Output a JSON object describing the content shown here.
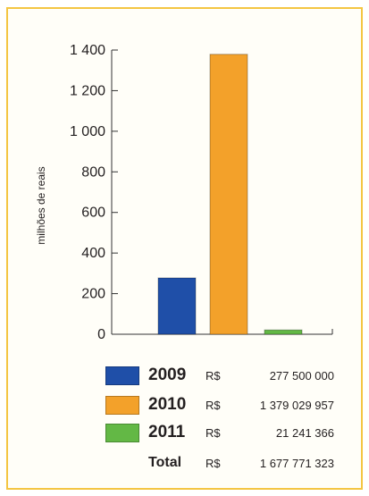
{
  "chart_data": {
    "type": "bar",
    "ylabel": "milhões de reais",
    "ylim": [
      0,
      1400
    ],
    "yticks": [
      0,
      200,
      400,
      600,
      800,
      1000,
      1200,
      1400
    ],
    "ytick_labels": [
      "0",
      "200",
      "400",
      "600",
      "800",
      "1 000",
      "1 200",
      "1 400"
    ],
    "categories": [
      "2009",
      "2010",
      "2011"
    ],
    "values": [
      277.5,
      1379.029957,
      21.241366
    ],
    "colors": [
      "#1f4fa8",
      "#f3a12a",
      "#63b845"
    ],
    "grid": false
  },
  "legend": {
    "items": [
      {
        "year": "2009",
        "currency": "R$",
        "amount": "277 500 000",
        "color": "#1f4fa8"
      },
      {
        "year": "2010",
        "currency": "R$",
        "amount": "1 379 029 957",
        "color": "#f3a12a"
      },
      {
        "year": "2011",
        "currency": "R$",
        "amount": "21 241 366",
        "color": "#63b845"
      }
    ],
    "total": {
      "label": "Total",
      "currency": "R$",
      "amount": "1 677 771 323"
    }
  }
}
